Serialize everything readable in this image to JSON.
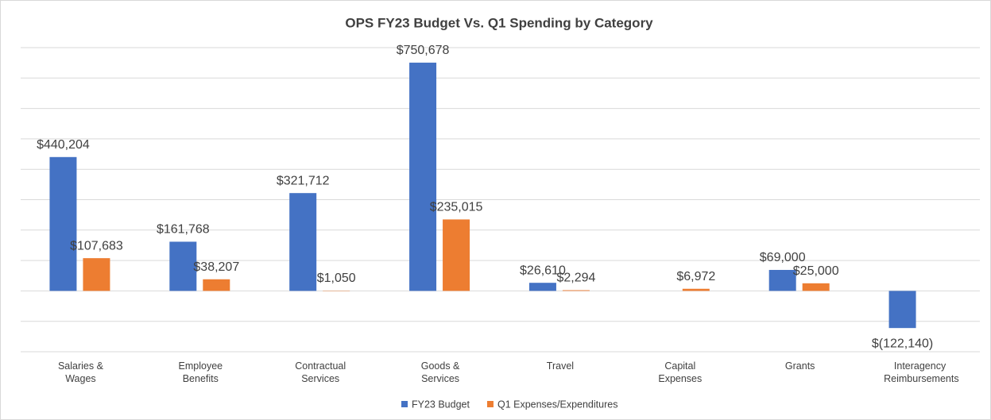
{
  "chart_data": {
    "type": "bar",
    "title": "OPS FY23 Budget Vs. Q1 Spending by Category",
    "categories": [
      "Salaries & Wages",
      "Employee Benefits",
      "Contractual Services",
      "Goods & Services",
      "Travel",
      "Capital Expenses",
      "Grants",
      "Interagency Reimbursements"
    ],
    "series": [
      {
        "name": "FY23 Budget",
        "color": "#4472c4",
        "values": [
          440204,
          161768,
          321712,
          750678,
          26610,
          null,
          69000,
          -122140
        ],
        "value_labels": [
          "$440,204",
          "$161,768",
          "$321,712",
          "$750,678",
          "$26,610",
          null,
          "$69,000",
          "$(122,140)"
        ]
      },
      {
        "name": "Q1 Expenses/Expenditures",
        "color": "#ed7d31",
        "values": [
          107683,
          38207,
          1050,
          235015,
          2294,
          6972,
          25000,
          null
        ],
        "value_labels": [
          "$107,683",
          "$38,207",
          "$1,050",
          "$235,015",
          "$2,294",
          "$6,972",
          "$25,000",
          null
        ]
      }
    ],
    "ylim": [
      -200000,
      800000
    ],
    "yticks": [
      -200000,
      -100000,
      0,
      100000,
      200000,
      300000,
      400000,
      500000,
      600000,
      700000,
      800000
    ],
    "ytick_labels": false,
    "grid": true,
    "legend": "bottom"
  }
}
